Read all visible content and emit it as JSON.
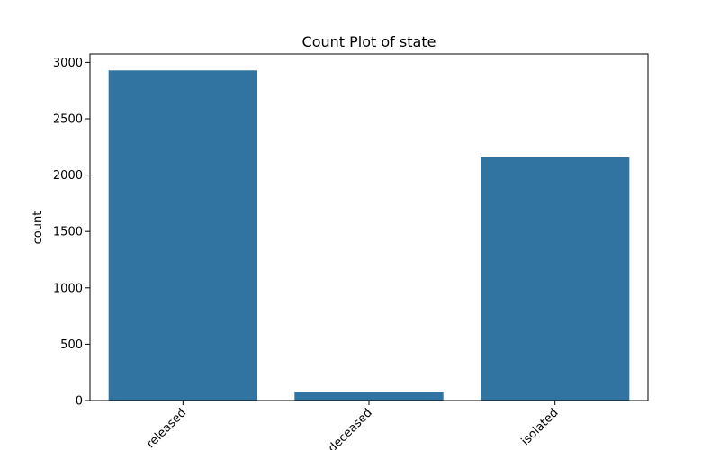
{
  "chart_data": {
    "type": "bar",
    "title": "Count Plot of state",
    "xlabel": "",
    "ylabel": "count",
    "categories": [
      "released",
      "deceased",
      "isolated"
    ],
    "values": [
      2929,
      78,
      2158
    ],
    "ylim": [
      0,
      3075
    ],
    "yticks": [
      0,
      500,
      1000,
      1500,
      2000,
      2500,
      3000
    ],
    "bar_color": "#3274a1",
    "grid": false,
    "legend": "none"
  }
}
